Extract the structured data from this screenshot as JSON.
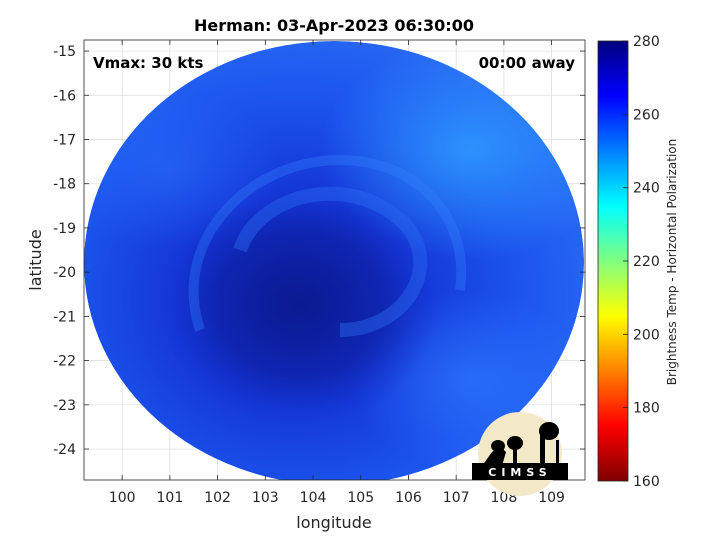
{
  "chart_data": {
    "type": "heatmap",
    "title": "Herman: 03-Apr-2023 06:30:00",
    "xlabel": "longitude",
    "ylabel": "latitude",
    "xlim": [
      99.2,
      109.7
    ],
    "ylim": [
      -24.7,
      -14.75
    ],
    "xticks": [
      100,
      101,
      102,
      103,
      104,
      105,
      106,
      107,
      108,
      109
    ],
    "xtick_labels": [
      "100",
      "101",
      "102",
      "103",
      "104",
      "105",
      "106",
      "107",
      "108",
      "109"
    ],
    "yticks": [
      -15,
      -16,
      -17,
      -18,
      -19,
      -20,
      -21,
      -22,
      -23,
      -24
    ],
    "ytick_labels": [
      "-15",
      "-16",
      "-17",
      "-18",
      "-19",
      "-20",
      "-21",
      "-22",
      "-23",
      "-24"
    ],
    "grid": true,
    "annotations": {
      "vmax": "Vmax: 30 kts",
      "away": "00:00 away"
    },
    "colorbar": {
      "label": "Brightness Temp - Horizontal Polarization",
      "range": [
        160,
        280
      ],
      "ticks": [
        280,
        260,
        240,
        220,
        200,
        180,
        160
      ],
      "tick_labels": [
        "280",
        "260",
        "240",
        "220",
        "200",
        "180",
        "160"
      ],
      "colors": [
        "#7f0000",
        "#ff0000",
        "#ff8000",
        "#ffff00",
        "#80ff80",
        "#00ffff",
        "#0080ff",
        "#0000ff",
        "#00007f"
      ]
    },
    "swath": {
      "center_lon": 104.5,
      "center_lat": -19.9,
      "storm_center_lon": 103.8,
      "storm_center_lat": -20.6
    }
  },
  "logo": {
    "text": "CIMSS"
  }
}
